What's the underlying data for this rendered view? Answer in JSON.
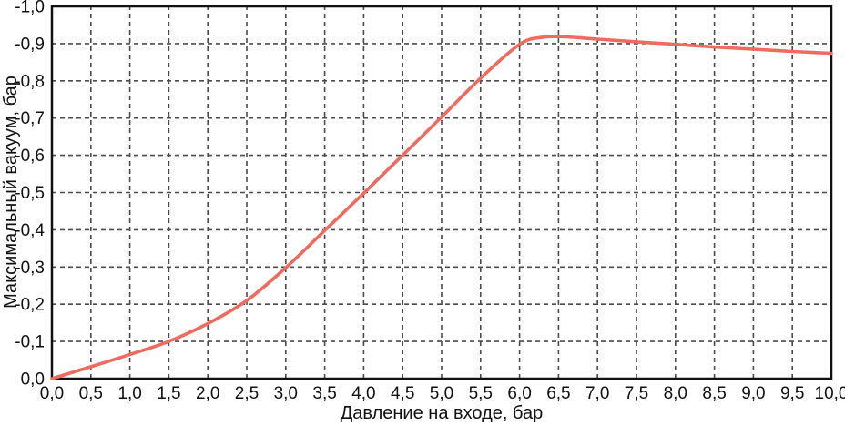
{
  "chart_data": {
    "type": "line",
    "title": "",
    "xlabel": "Давление на входе, бар",
    "ylabel": "Максимальный вакуум, бар",
    "xlim": [
      0,
      10
    ],
    "ylim": [
      0,
      -1.0
    ],
    "grid": "dashed, both axes",
    "legend": "none",
    "x_ticks": {
      "values": [
        0,
        0.5,
        1,
        1.5,
        2,
        2.5,
        3,
        3.5,
        4,
        4.5,
        5,
        5.5,
        6,
        6.5,
        7,
        7.5,
        8,
        8.5,
        9,
        9.5,
        10
      ],
      "labels": [
        "0,0",
        "0,5",
        "1,0",
        "1,5",
        "2,0",
        "2,5",
        "3,0",
        "3,5",
        "4,0",
        "4,5",
        "5,0",
        "5,5",
        "6,0",
        "6,5",
        "7,0",
        "7,5",
        "8,0",
        "8,5",
        "9,0",
        "9,5",
        "10,0"
      ]
    },
    "y_ticks": {
      "values": [
        0,
        -0.1,
        -0.2,
        -0.3,
        -0.4,
        -0.5,
        -0.6,
        -0.7,
        -0.8,
        -0.9,
        -1.0
      ],
      "labels": [
        "0,0",
        "-0,1",
        "-0,2",
        "-0,3",
        "-0,4",
        "-0,5",
        "-0,6",
        "-0,7",
        "-0,8",
        "-0,9",
        "-1,0"
      ]
    },
    "series": [
      {
        "name": "Максимальный вакуум",
        "color": "#ee6b60",
        "x": [
          0,
          0.5,
          1,
          1.5,
          2,
          2.5,
          3,
          3.5,
          4,
          4.5,
          5,
          5.5,
          6,
          6.3,
          6.6,
          7,
          7.5,
          8,
          8.5,
          9,
          9.5,
          10
        ],
        "y": [
          0,
          -0.032,
          -0.065,
          -0.1,
          -0.148,
          -0.21,
          -0.298,
          -0.398,
          -0.498,
          -0.6,
          -0.703,
          -0.807,
          -0.898,
          -0.917,
          -0.918,
          -0.912,
          -0.905,
          -0.898,
          -0.891,
          -0.885,
          -0.879,
          -0.874
        ]
      }
    ]
  },
  "colors": {
    "curve": "#ee6b60",
    "grid": "#4b4b4b",
    "axis": "#111111",
    "text": "#111111",
    "background": "#ffffff"
  }
}
